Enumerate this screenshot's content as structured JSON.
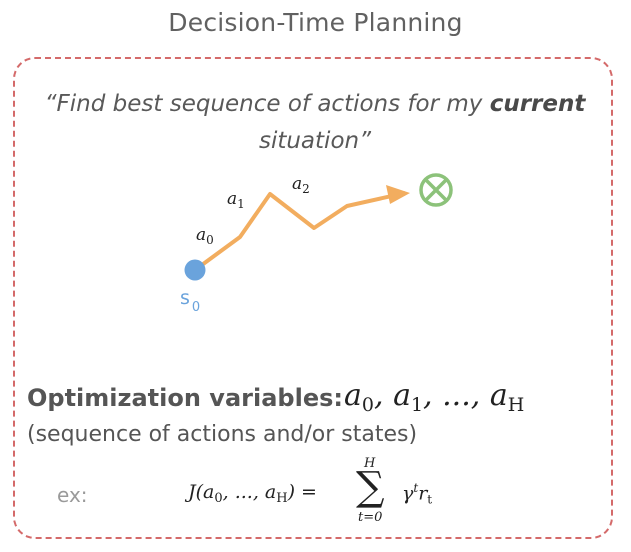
{
  "title": "Decision-Time Planning",
  "quote": {
    "open": "“Find best sequence of actions for my ",
    "bold": "current",
    "close": " situation”"
  },
  "diagram": {
    "start_label_base": "s",
    "start_label_sub": "0",
    "actions": [
      {
        "base": "a",
        "sub": "0"
      },
      {
        "base": "a",
        "sub": "1"
      },
      {
        "base": "a",
        "sub": "2"
      }
    ],
    "colors": {
      "path": "#f2ad5f",
      "start": "#6aa3dc",
      "goal": "#8cc27a"
    },
    "goal_icon": "circled-x-icon"
  },
  "optimization": {
    "label": "Optimization variables:",
    "vars_a0": "a",
    "vars_a0_sub": "0",
    "vars_a1": "a",
    "vars_a1_sub": "1",
    "vars_mid": ", ..., ",
    "vars_aH": "a",
    "vars_aH_sub": "H",
    "subtitle": "(sequence of actions and/or states)"
  },
  "example": {
    "label": "ex:",
    "lhs_text": "J(a",
    "lhs_sub0": "0",
    "lhs_mid": ", ..., a",
    "lhs_subH": "H",
    "lhs_end": ") =",
    "sum_upper": "H",
    "sum_lower": "t=0",
    "gamma": "γ",
    "gamma_sup": "t",
    "r": "r",
    "r_sub": "t"
  },
  "frame_color": "#d46a6a"
}
